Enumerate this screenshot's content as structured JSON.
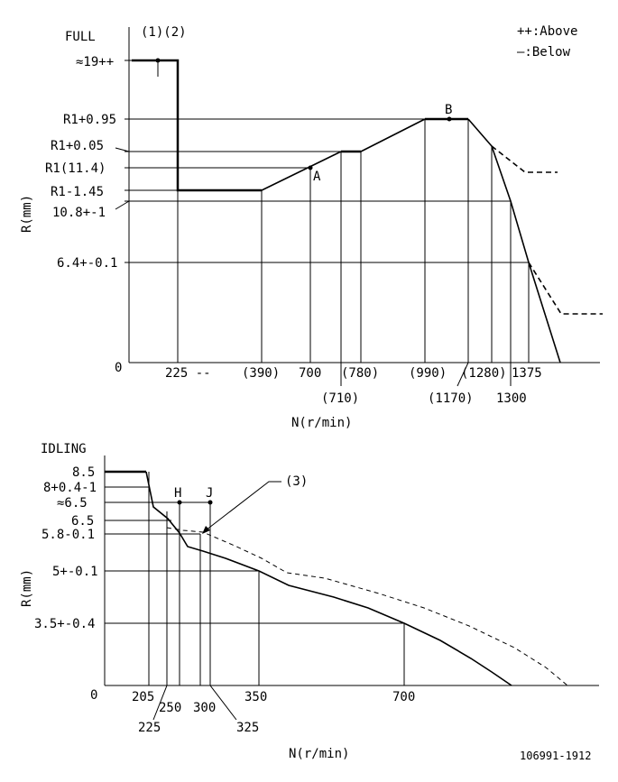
{
  "legend": {
    "above": "++:Above",
    "below": "—:Below"
  },
  "full": {
    "title": "FULL",
    "markers": "(1)(2)",
    "ylabel": "R(mm)",
    "xlabel": "N(r/min)",
    "y_labels": [
      "≈19++",
      "R1+0.95",
      "R1+0.05",
      "R1(11.4)",
      "R1-1.45",
      "10.8+-1",
      "6.4+-0.1",
      "0"
    ],
    "x_labels": [
      "225 --",
      "(390)",
      "700",
      "(780)",
      "(990)",
      "(1280)",
      "1375",
      "(710)",
      "(1170)",
      "1300"
    ],
    "points": [
      "A",
      "B"
    ]
  },
  "idling": {
    "title": "IDLING",
    "marker": "(3)",
    "ylabel": "R(mm)",
    "xlabel": "N(r/min)",
    "y_labels": [
      "8.5",
      "8+0.4-1",
      "≈6.5",
      "6.5",
      "5.8-0.1",
      "5+-0.1",
      "3.5+-0.4",
      "0"
    ],
    "x_labels": [
      "205",
      "250",
      "300",
      "350",
      "700",
      "225",
      "325"
    ],
    "points": [
      "H",
      "J"
    ]
  },
  "footer": "106991-1912"
}
